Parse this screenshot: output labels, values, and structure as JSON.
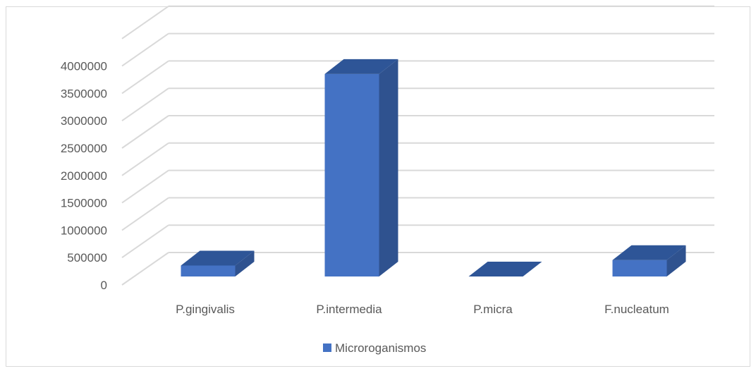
{
  "chart_data": {
    "type": "bar",
    "style": "3d-column",
    "categories": [
      "P.gingivalis",
      "P.intermedia",
      "P.micra",
      "F.nucleatum"
    ],
    "series": [
      {
        "name": "Microroganismos",
        "values": [
          200000,
          3700000,
          0,
          300000
        ],
        "color": "#4472C4"
      }
    ],
    "yticks": [
      "0",
      "500000",
      "1000000",
      "1500000",
      "2000000",
      "2500000",
      "3000000",
      "3500000",
      "4000000"
    ],
    "ylim": [
      0,
      4500000
    ],
    "grid": true,
    "legend": "bottom",
    "title": "",
    "xlabel": "",
    "ylabel": ""
  }
}
